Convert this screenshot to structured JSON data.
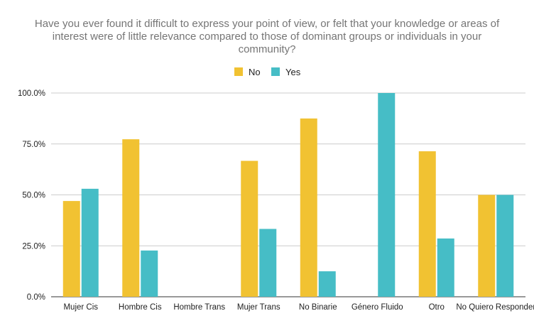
{
  "chart_data": {
    "type": "bar",
    "title_lines": [
      "Have you ever found it difficult to express your point of view, or felt that your knowledge or areas of",
      "interest were of little relevance compared to those of dominant groups or individuals in your",
      "community?"
    ],
    "categories": [
      "Mujer Cis",
      "Hombre Cis",
      "Hombre Trans",
      "Mujer Trans",
      "No Binarie",
      "Género Fluido",
      "Otro",
      "No Quiero Responder"
    ],
    "series": [
      {
        "name": "No",
        "color": "#f1c232",
        "values": [
          47,
          77.3,
          0,
          66.7,
          87.5,
          0,
          71.4,
          50
        ]
      },
      {
        "name": "Yes",
        "color": "#46bdc6",
        "values": [
          53,
          22.7,
          0,
          33.3,
          12.5,
          100,
          28.6,
          50
        ]
      }
    ],
    "yticks": [
      "0.0%",
      "25.0%",
      "50.0%",
      "75.0%",
      "100.0%"
    ],
    "ylim": [
      0,
      100
    ],
    "legend_position": "top-center",
    "grid": true
  }
}
